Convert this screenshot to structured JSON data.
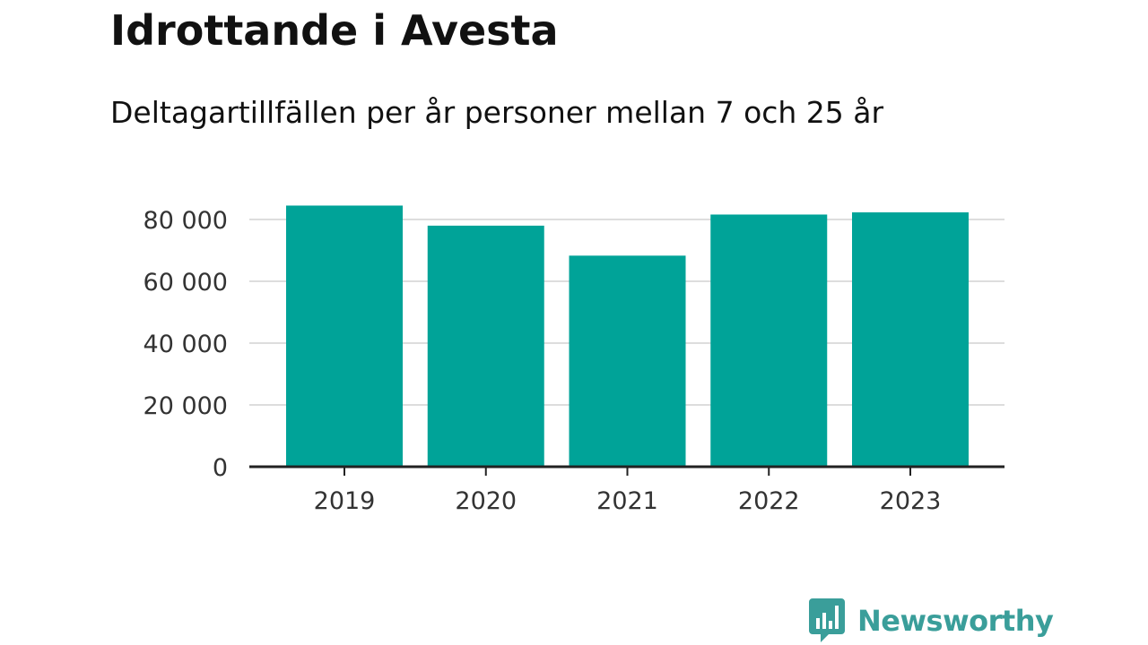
{
  "title": "Idrottande i Avesta",
  "subtitle": "Deltagartillfällen per år personer mellan 7 och 25 år",
  "brand": {
    "name": "Newsworthy",
    "logo_icon": "bar-chart-speech-bubble-icon",
    "color": "#3a9e9a"
  },
  "chart_data": {
    "type": "bar",
    "title": "Idrottande i Avesta",
    "subtitle": "Deltagartillfällen per år personer mellan 7 och 25 år",
    "categories": [
      "2019",
      "2020",
      "2021",
      "2022",
      "2023"
    ],
    "values": [
      84500,
      78000,
      68300,
      81600,
      82300
    ],
    "xlabel": "",
    "ylabel": "",
    "ylim": [
      0,
      80000
    ],
    "yticks": [
      0,
      20000,
      40000,
      60000,
      80000
    ],
    "ytick_labels": [
      "0",
      "20 000",
      "40 000",
      "60 000",
      "80 000"
    ],
    "grid": true,
    "legend": "none",
    "bar_color": "#00a398",
    "grid_color": "#dddddd",
    "axis_color": "#222222"
  }
}
